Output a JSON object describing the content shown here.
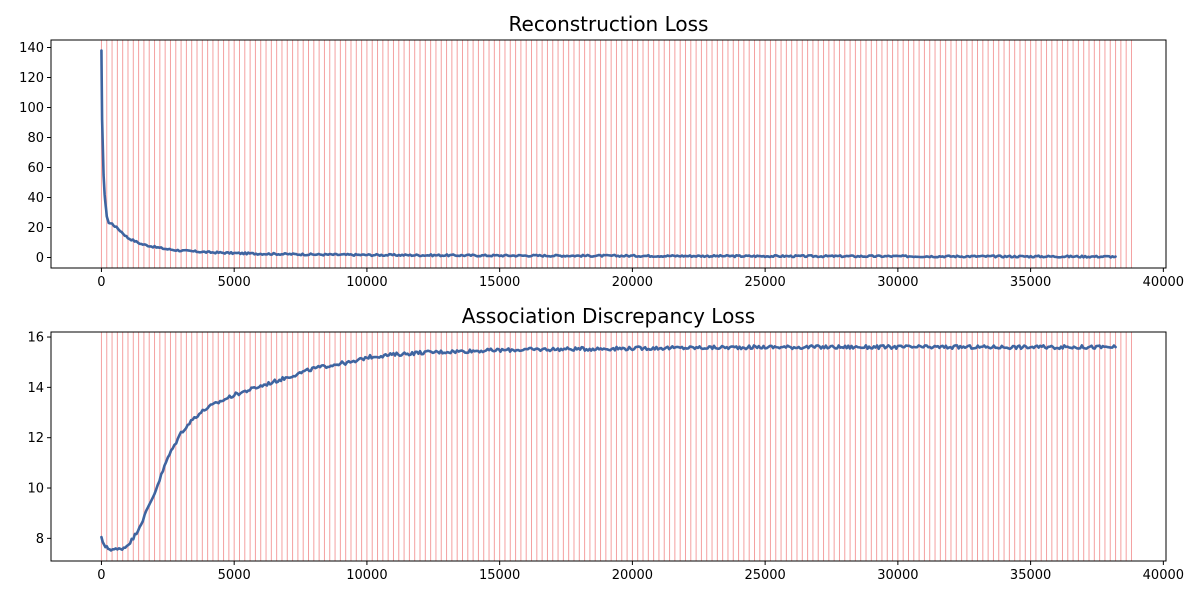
{
  "colors": {
    "series": "#3f64a0",
    "epoch_lines": "#f08080"
  },
  "chart_data": [
    {
      "type": "line",
      "title": "Reconstruction Loss",
      "xlabel": "",
      "ylabel": "",
      "xlim": [
        -1900,
        40100
      ],
      "ylim": [
        -7,
        145
      ],
      "x_ticks": [
        0,
        5000,
        10000,
        15000,
        20000,
        25000,
        30000,
        35000,
        40000
      ],
      "y_ticks": [
        0,
        20,
        40,
        60,
        80,
        100,
        120,
        140
      ],
      "grid": false,
      "vertical_lines": {
        "start": 0,
        "end": 38900,
        "step": 200
      },
      "series": [
        {
          "points": [
            [
              0,
              138
            ],
            [
              10,
              118
            ],
            [
              25,
              92
            ],
            [
              50,
              75
            ],
            [
              80,
              55
            ],
            [
              120,
              42
            ],
            [
              160,
              34
            ],
            [
              200,
              28
            ],
            [
              250,
              24
            ],
            [
              300,
              23
            ],
            [
              400,
              22.5
            ],
            [
              500,
              21
            ],
            [
              700,
              18
            ],
            [
              1000,
              13
            ],
            [
              1500,
              9
            ],
            [
              2000,
              7
            ],
            [
              2500,
              5.5
            ],
            [
              3000,
              4.6
            ],
            [
              4000,
              3.5
            ],
            [
              5000,
              2.9
            ],
            [
              6000,
              2.5
            ],
            [
              8000,
              2.0
            ],
            [
              10000,
              1.7
            ],
            [
              15000,
              1.3
            ],
            [
              20000,
              1.1
            ],
            [
              25000,
              0.9
            ],
            [
              30000,
              0.8
            ],
            [
              35000,
              0.7
            ],
            [
              38200,
              0.6
            ]
          ],
          "noise": 0.6
        }
      ]
    },
    {
      "type": "line",
      "title": "Association Discrepancy Loss",
      "xlabel": "",
      "ylabel": "",
      "xlim": [
        -1900,
        40100
      ],
      "ylim": [
        7.1,
        16.2
      ],
      "x_ticks": [
        0,
        5000,
        10000,
        15000,
        20000,
        25000,
        30000,
        35000,
        40000
      ],
      "y_ticks": [
        8,
        10,
        12,
        14,
        16
      ],
      "grid": false,
      "vertical_lines": {
        "start": 0,
        "end": 38900,
        "step": 200
      },
      "series": [
        {
          "points": [
            [
              0,
              8.05
            ],
            [
              50,
              7.85
            ],
            [
              150,
              7.65
            ],
            [
              300,
              7.58
            ],
            [
              600,
              7.55
            ],
            [
              900,
              7.65
            ],
            [
              1200,
              8.0
            ],
            [
              1500,
              8.6
            ],
            [
              2000,
              9.8
            ],
            [
              2500,
              11.2
            ],
            [
              3000,
              12.2
            ],
            [
              3500,
              12.8
            ],
            [
              4000,
              13.2
            ],
            [
              5000,
              13.7
            ],
            [
              6000,
              14.05
            ],
            [
              7000,
              14.4
            ],
            [
              8000,
              14.75
            ],
            [
              9000,
              14.95
            ],
            [
              9500,
              15.0
            ],
            [
              10000,
              15.2
            ],
            [
              11000,
              15.3
            ],
            [
              12000,
              15.38
            ],
            [
              14000,
              15.45
            ],
            [
              16000,
              15.5
            ],
            [
              20000,
              15.55
            ],
            [
              25000,
              15.6
            ],
            [
              30000,
              15.6
            ],
            [
              35000,
              15.6
            ],
            [
              38200,
              15.6
            ]
          ],
          "noise": 0.07
        }
      ]
    }
  ]
}
